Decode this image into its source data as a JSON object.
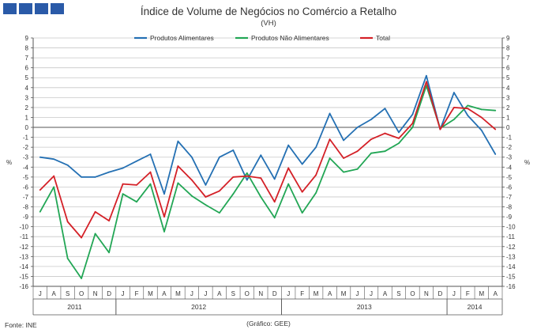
{
  "header": {
    "title": "Índice de Volume de Negócios no Comércio a Retalho",
    "subtitle": "(VH)"
  },
  "footer": {
    "source": "Fonte: INE",
    "credit": "(Gráfico: GEE)"
  },
  "colors": {
    "logo": "#2a5aa8",
    "grid": "#c8c8c8",
    "axis": "#555555"
  },
  "chart_data": {
    "type": "line",
    "title": "Índice de Volume de Negócios no Comércio a Retalho",
    "subtitle": "(VH)",
    "ylabel_left": "%",
    "ylabel_right": "%",
    "ylim": [
      -16,
      9
    ],
    "yticks": [
      9,
      8,
      7,
      6,
      5,
      4,
      3,
      2,
      1,
      0,
      -1,
      -2,
      -3,
      -4,
      -5,
      -6,
      -7,
      -8,
      -9,
      -10,
      -11,
      -12,
      -13,
      -14,
      -15,
      -16
    ],
    "categories": [
      "J",
      "A",
      "S",
      "O",
      "N",
      "D",
      "J",
      "F",
      "M",
      "A",
      "M",
      "J",
      "J",
      "A",
      "S",
      "O",
      "N",
      "D",
      "J",
      "F",
      "M",
      "A",
      "M",
      "J",
      "J",
      "A",
      "S",
      "O",
      "N",
      "D",
      "J",
      "F",
      "M",
      "A"
    ],
    "years": [
      {
        "label": "2011",
        "start": 0,
        "count": 6
      },
      {
        "label": "2012",
        "start": 6,
        "count": 12
      },
      {
        "label": "2013",
        "start": 18,
        "count": 12
      },
      {
        "label": "2014",
        "start": 30,
        "count": 4
      }
    ],
    "legend_position": "top-center",
    "grid": "horizontal",
    "series": [
      {
        "name": "Produtos Alimentares",
        "color": "#2470b3",
        "values": [
          -3.0,
          -3.2,
          -3.8,
          -5.0,
          -5.0,
          -4.5,
          -4.1,
          -3.4,
          -2.7,
          -6.7,
          -1.4,
          -3.0,
          -5.8,
          -3.0,
          -2.3,
          -5.3,
          -2.8,
          -5.2,
          -1.8,
          -3.7,
          -2.0,
          1.4,
          -1.3,
          0.0,
          0.8,
          1.9,
          -0.5,
          1.3,
          5.2,
          -0.2,
          3.5,
          1.2,
          -0.3,
          -2.7
        ]
      },
      {
        "name": "Produtos Não Alimentares",
        "color": "#22a655",
        "values": [
          -8.5,
          -6.0,
          -13.2,
          -15.2,
          -10.7,
          -12.6,
          -6.7,
          -7.5,
          -5.7,
          -10.5,
          -5.6,
          -6.9,
          -7.8,
          -8.6,
          -6.7,
          -4.6,
          -7.0,
          -9.1,
          -5.7,
          -8.6,
          -6.6,
          -3.1,
          -4.5,
          -4.2,
          -2.6,
          -2.4,
          -1.6,
          0.0,
          4.2,
          -0.1,
          0.8,
          2.2,
          1.8,
          1.7
        ]
      },
      {
        "name": "Total",
        "color": "#d42027",
        "values": [
          -6.3,
          -4.9,
          -9.5,
          -11.1,
          -8.5,
          -9.4,
          -5.7,
          -5.8,
          -4.5,
          -9.0,
          -3.9,
          -5.3,
          -7.0,
          -6.4,
          -5.0,
          -4.9,
          -5.1,
          -7.5,
          -4.1,
          -6.5,
          -4.8,
          -1.2,
          -3.1,
          -2.4,
          -1.2,
          -0.6,
          -1.1,
          0.4,
          4.6,
          -0.2,
          2.0,
          1.9,
          1.0,
          -0.2
        ]
      }
    ]
  }
}
